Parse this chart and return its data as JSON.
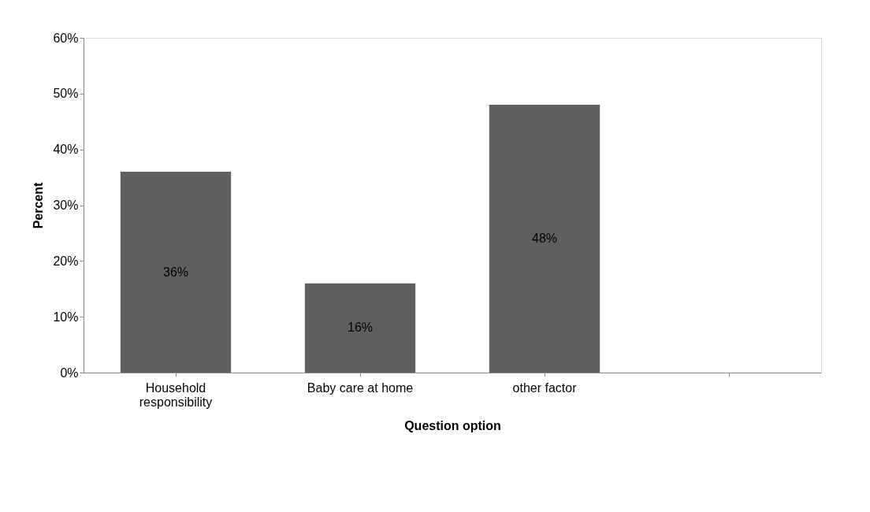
{
  "chart_data": {
    "type": "bar",
    "xlabel": "Question option",
    "ylabel": "Percent",
    "categories": [
      "Household responsibility",
      "Baby care at home",
      "other factor",
      null
    ],
    "values": [
      36,
      16,
      48,
      null
    ],
    "value_labels": [
      "36%",
      "16%",
      "48%",
      null
    ],
    "color": "#5f5f5f",
    "ylim": [
      0,
      60
    ],
    "yticks": [
      {
        "value": 0,
        "label": "0%"
      },
      {
        "value": 10,
        "label": "10%"
      },
      {
        "value": 20,
        "label": "20%"
      },
      {
        "value": 30,
        "label": "30%"
      },
      {
        "value": 40,
        "label": "40%"
      },
      {
        "value": 50,
        "label": "50%"
      },
      {
        "value": 60,
        "label": "60%"
      }
    ],
    "grid": false
  }
}
